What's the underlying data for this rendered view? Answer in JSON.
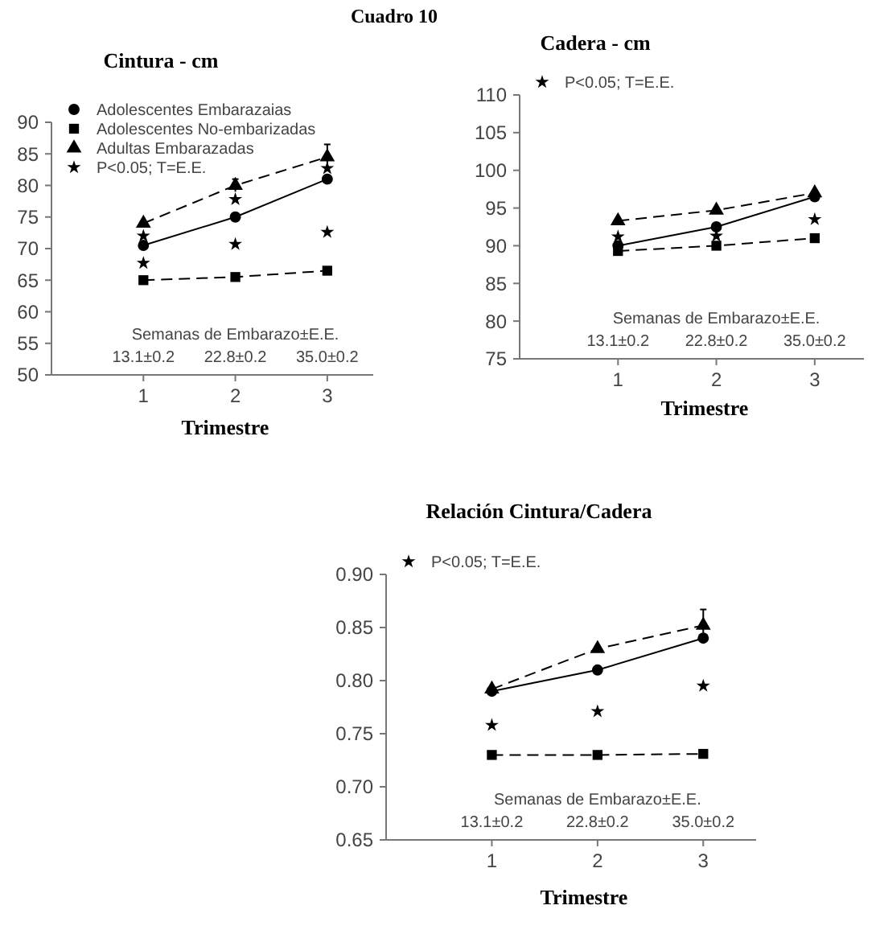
{
  "chart_data": [
    {
      "type": "line",
      "title": "Cintura - cm",
      "xlabel": "Trimestre",
      "x": [
        1,
        2,
        3
      ],
      "xlim": [
        0,
        3.5
      ],
      "xticks": [
        1,
        2,
        3
      ],
      "ylim": [
        50,
        90
      ],
      "yticks": [
        50,
        55,
        60,
        65,
        70,
        75,
        80,
        85,
        90
      ],
      "legend": "top left",
      "annotations": [
        "Cuadro 10",
        "Semanas de Embarazo±E.E.",
        "13.1±0.2",
        "22.8±0.2",
        "35.0±0.2"
      ],
      "series": [
        {
          "name": "Adolescentes Embarazaias",
          "color": "#000000",
          "values": [
            70.5,
            75,
            81
          ],
          "marker": "circle",
          "line_style": "solid"
        },
        {
          "name": "Adolescentes No-embarizadas",
          "color": "#000000",
          "values": [
            65,
            65.5,
            66.5
          ],
          "marker": "square",
          "line_style": "dashed"
        },
        {
          "name": "Adultas Embarazadas",
          "color": "#000000",
          "values": [
            74,
            80,
            84.5
          ],
          "marker": "triangle",
          "line_style": "dashed",
          "errors": [
            null,
            1,
            2
          ]
        },
        {
          "name": "P<0.05; T=E.E.",
          "type": "scatter",
          "color": "#000000",
          "x": [
            1,
            1,
            2,
            2,
            3,
            3
          ],
          "values": [
            72,
            67.7,
            77.8,
            70.7,
            82.7,
            72.6
          ],
          "marker": "star"
        }
      ]
    },
    {
      "type": "line",
      "title": "Cadera - cm",
      "xlabel": "Trimestre",
      "x": [
        1,
        2,
        3
      ],
      "xlim": [
        0,
        3.5
      ],
      "xticks": [
        1,
        2,
        3
      ],
      "ylim": [
        75,
        110
      ],
      "yticks": [
        75,
        80,
        85,
        90,
        95,
        100,
        105,
        110
      ],
      "legend": "top left",
      "annotations": [
        "Semanas de Embarazo±E.E.",
        "13.1±0.2",
        "22.8±0.2",
        "35.0±0.2"
      ],
      "series": [
        {
          "color": "#000000",
          "values": [
            90,
            92.5,
            96.5
          ],
          "marker": "circle",
          "line_style": "solid"
        },
        {
          "color": "#000000",
          "values": [
            89.3,
            90,
            91
          ],
          "marker": "square",
          "line_style": "dashed"
        },
        {
          "color": "#000000",
          "values": [
            93.3,
            94.7,
            97
          ],
          "marker": "triangle",
          "line_style": "dashed"
        },
        {
          "name": "P<0.05; T=E.E.",
          "type": "scatter",
          "color": "#000000",
          "x": [
            1,
            2,
            3
          ],
          "values": [
            91.2,
            91.3,
            93.5
          ],
          "marker": "star"
        }
      ]
    },
    {
      "type": "line",
      "title": "Relación Cintura/Cadera",
      "xlabel": "Trimestre",
      "x": [
        1,
        2,
        3
      ],
      "xlim": [
        0,
        3.5
      ],
      "xticks": [
        1,
        2,
        3
      ],
      "ylim": [
        0.65,
        0.9
      ],
      "yticks": [
        {
          "value": 0.65,
          "label": "0.65"
        },
        {
          "value": 0.7,
          "label": "0.70"
        },
        {
          "value": 0.75,
          "label": "0.75"
        },
        {
          "value": 0.8,
          "label": "0.80"
        },
        {
          "value": 0.85,
          "label": "0.85"
        },
        {
          "value": 0.9,
          "label": "0.90"
        }
      ],
      "legend": "top left",
      "annotations": [
        "Semanas de Embarazo±E.E.",
        "13.1±0.2",
        "22.8±0.2",
        "35.0±0.2"
      ],
      "series": [
        {
          "color": "#000000",
          "values": [
            0.79,
            0.81,
            0.84
          ],
          "marker": "circle",
          "line_style": "solid"
        },
        {
          "color": "#000000",
          "values": [
            0.73,
            0.73,
            0.731
          ],
          "marker": "square",
          "line_style": "dashed"
        },
        {
          "color": "#000000",
          "values": [
            0.792,
            0.83,
            0.852
          ],
          "marker": "triangle",
          "line_style": "dashed",
          "errors": [
            null,
            null,
            0.015
          ]
        },
        {
          "name": "P<0.05; T=E.E.",
          "type": "scatter",
          "color": "#000000",
          "x": [
            1,
            2,
            3
          ],
          "values": [
            0.758,
            0.771,
            0.795
          ],
          "marker": "star"
        }
      ]
    }
  ]
}
